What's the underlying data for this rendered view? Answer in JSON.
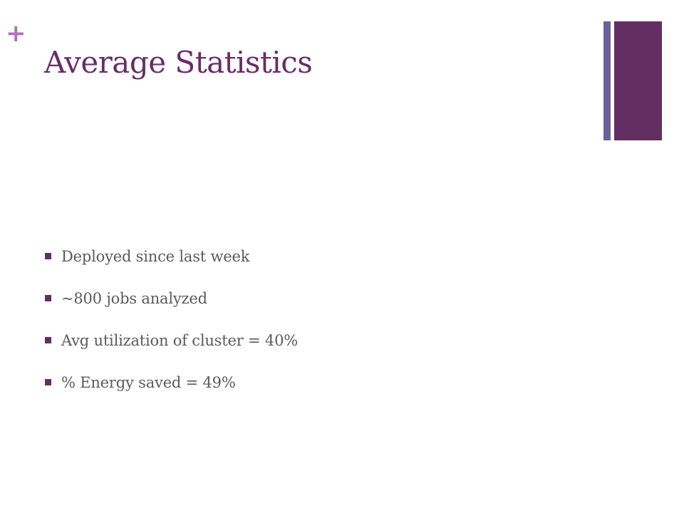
{
  "slide": {
    "plus_glyph": "+",
    "title": "Average Statistics",
    "bullets": [
      {
        "text": "Deployed since last week"
      },
      {
        "text": "~800 jobs analyzed"
      },
      {
        "text": "Avg utilization of cluster = 40%"
      },
      {
        "text": "% Energy saved = 49%"
      }
    ]
  },
  "colors": {
    "accent_plus": "#b46fc0",
    "title": "#6a2c6a",
    "bar_thin": "#6a619b",
    "bar_thick": "#632f63",
    "bullet_marker": "#632f63",
    "body_text": "#5a5a5a"
  }
}
